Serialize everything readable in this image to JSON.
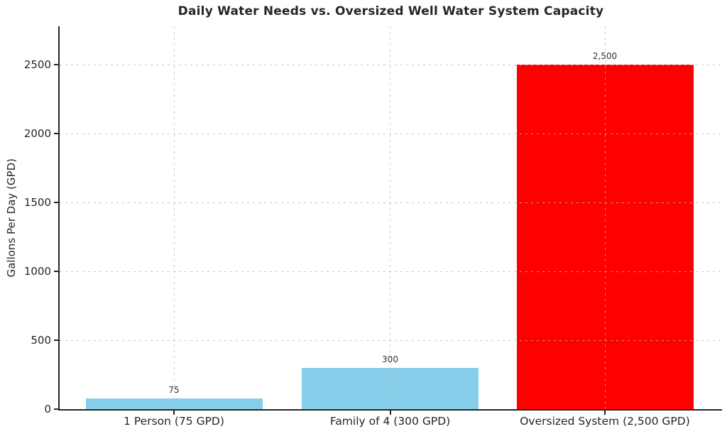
{
  "chart_data": {
    "type": "bar",
    "title": "Daily Water Needs vs. Oversized Well Water System Capacity",
    "xlabel": "",
    "ylabel": "Gallons Per Day (GPD)",
    "categories": [
      "1 Person (75 GPD)",
      "Family of 4 (300 GPD)",
      "Oversized System (2,500 GPD)"
    ],
    "values": [
      75,
      300,
      2500
    ],
    "value_labels": [
      "75",
      "300",
      "2,500"
    ],
    "bar_colors": [
      "#87CEEB",
      "#87CEEB",
      "#FF0000"
    ],
    "ytick_labels": [
      "0",
      "500",
      "1000",
      "1500",
      "2000",
      "2500"
    ],
    "ytick_values": [
      0,
      500,
      1000,
      1500,
      2000,
      2500
    ],
    "ylim": [
      0,
      2780
    ],
    "grid": true,
    "grid_line_style": "dashed",
    "legend_position": "none",
    "bar_width_fraction": 0.8
  },
  "colors": {
    "bar_person": "#87CEEB",
    "bar_oversized": "#FF0000",
    "axis": "#262626",
    "grid": "#bcbcbc",
    "value_label_text": "#333333",
    "background": "#ffffff"
  }
}
